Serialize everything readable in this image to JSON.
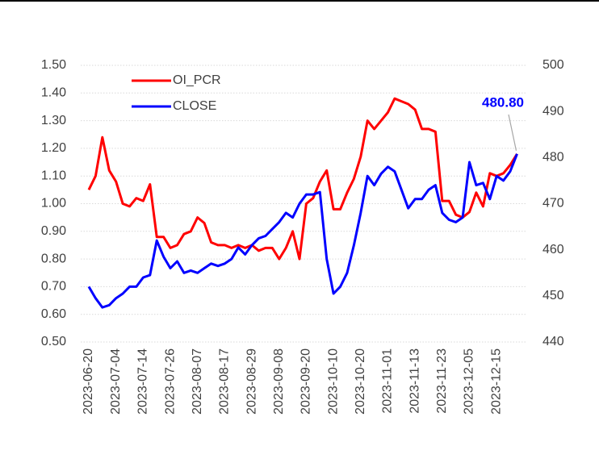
{
  "chart_data": {
    "type": "line",
    "categories": [
      "2023-06-20",
      null,
      null,
      null,
      "2023-07-04",
      null,
      null,
      null,
      "2023-07-14",
      null,
      null,
      null,
      "2023-07-26",
      null,
      null,
      null,
      "2023-08-07",
      null,
      null,
      null,
      "2023-08-17",
      null,
      null,
      null,
      "2023-08-29",
      null,
      null,
      null,
      "2023-09-08",
      null,
      null,
      null,
      "2023-09-20",
      null,
      null,
      null,
      "2023-10-10",
      null,
      null,
      null,
      "2023-10-20",
      null,
      null,
      null,
      "2023-11-01",
      null,
      null,
      null,
      "2023-11-13",
      null,
      null,
      null,
      "2023-11-23",
      null,
      null,
      null,
      "2023-12-05",
      null,
      null,
      null,
      "2023-12-15",
      null,
      null,
      null
    ],
    "series": [
      {
        "name": "OI_PCR",
        "color": "#ff0000",
        "axis": "y",
        "values": [
          1.05,
          1.1,
          1.24,
          1.12,
          1.08,
          1.0,
          0.99,
          1.02,
          1.01,
          1.07,
          0.88,
          0.88,
          0.84,
          0.85,
          0.89,
          0.9,
          0.95,
          0.93,
          0.86,
          0.85,
          0.85,
          0.84,
          0.85,
          0.84,
          0.85,
          0.83,
          0.84,
          0.84,
          0.8,
          0.84,
          0.9,
          0.8,
          1.0,
          1.02,
          1.08,
          1.12,
          0.98,
          0.98,
          1.04,
          1.09,
          1.17,
          1.3,
          1.27,
          1.3,
          1.33,
          1.38,
          1.37,
          1.36,
          1.34,
          1.27,
          1.27,
          1.26,
          1.01,
          1.01,
          0.96,
          0.95,
          0.97,
          1.04,
          0.99,
          1.11,
          1.1,
          1.11,
          1.14,
          1.18
        ]
      },
      {
        "name": "CLOSE",
        "color": "#0000ff",
        "axis": "y2",
        "values": [
          452,
          449.5,
          447.5,
          448,
          449.5,
          450.5,
          452,
          452,
          454,
          454.5,
          462,
          458.5,
          456,
          457.5,
          455,
          455.5,
          455,
          456,
          457,
          456.5,
          457,
          458,
          460.5,
          459,
          461,
          462.5,
          463,
          464.5,
          466,
          468,
          467,
          470,
          472,
          472,
          472.5,
          458,
          450.5,
          452,
          455,
          461,
          468,
          476,
          474,
          476.5,
          478,
          477,
          473,
          469,
          471,
          471,
          473,
          474,
          468,
          466.5,
          466,
          467,
          479,
          474,
          474.5,
          471,
          476,
          475,
          477,
          480.8
        ],
        "value_labels": [
          null,
          null,
          null,
          null,
          null,
          null,
          null,
          null,
          null,
          null,
          null,
          null,
          null,
          null,
          null,
          null,
          null,
          null,
          null,
          null,
          null,
          null,
          null,
          null,
          null,
          null,
          null,
          null,
          null,
          null,
          null,
          null,
          null,
          null,
          null,
          null,
          null,
          null,
          null,
          null,
          null,
          null,
          null,
          null,
          null,
          null,
          null,
          null,
          null,
          null,
          null,
          null,
          null,
          null,
          null,
          null,
          null,
          null,
          null,
          null,
          null,
          null,
          null,
          "480.80"
        ]
      }
    ],
    "ylim": [
      0.5,
      1.5
    ],
    "yticks": [
      {
        "value": 0.5,
        "label": "0.50"
      },
      {
        "value": 0.6,
        "label": "0.60"
      },
      {
        "value": 0.7,
        "label": "0.70"
      },
      {
        "value": 0.8,
        "label": "0.80"
      },
      {
        "value": 0.9,
        "label": "0.90"
      },
      {
        "value": 1.0,
        "label": "1.00"
      },
      {
        "value": 1.1,
        "label": "1.10"
      },
      {
        "value": 1.2,
        "label": "1.20"
      },
      {
        "value": 1.3,
        "label": "1.30"
      },
      {
        "value": 1.4,
        "label": "1.40"
      },
      {
        "value": 1.5,
        "label": "1.50"
      }
    ],
    "y2lim": [
      440,
      500
    ],
    "y2ticks": [
      440,
      450,
      460,
      470,
      480,
      490,
      500
    ],
    "grid": true,
    "legend": "upper left"
  }
}
